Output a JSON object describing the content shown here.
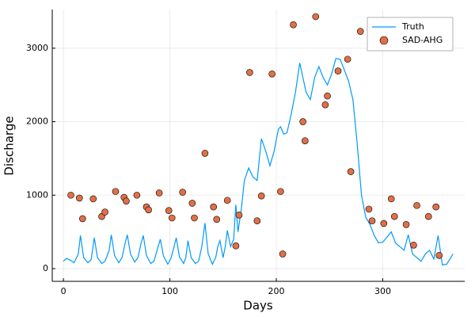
{
  "chart_data": {
    "type": "line",
    "xlabel": "Days",
    "ylabel": "Discharge",
    "xlim": [
      -10.5,
      377
    ],
    "ylim": [
      -173,
      3527
    ],
    "xticks": [
      0,
      100,
      200,
      300
    ],
    "yticks": [
      0,
      1000,
      2000,
      3000
    ],
    "grid": true,
    "legend": "top-right",
    "series": [
      {
        "name": "Truth",
        "type": "line",
        "color": "#009afa",
        "x": [
          0,
          3,
          7,
          10,
          14,
          16,
          19,
          23,
          26,
          29,
          32,
          36,
          39,
          43,
          45,
          48,
          52,
          55,
          58,
          60,
          63,
          67,
          70,
          73,
          75,
          78,
          82,
          85,
          88,
          91,
          94,
          98,
          101,
          104,
          106,
          109,
          113,
          115,
          117,
          120,
          124,
          127,
          130,
          133,
          136,
          140,
          143,
          145,
          147,
          150,
          152,
          154,
          157,
          160,
          162,
          164,
          167,
          170,
          174,
          178,
          182,
          186,
          190,
          194,
          198,
          202,
          204,
          207,
          210,
          214,
          218,
          222,
          225,
          228,
          232,
          236,
          240,
          244,
          248,
          252,
          256,
          260,
          264,
          268,
          272,
          276,
          280,
          284,
          288,
          292,
          296,
          300,
          304,
          308,
          312,
          316,
          320,
          324,
          328,
          332,
          336,
          340,
          344,
          348,
          352,
          356,
          360,
          364,
          366
        ],
        "values": [
          100,
          140,
          110,
          80,
          200,
          450,
          150,
          80,
          120,
          420,
          150,
          70,
          100,
          250,
          460,
          180,
          80,
          150,
          350,
          460,
          200,
          90,
          150,
          350,
          450,
          180,
          70,
          100,
          250,
          400,
          170,
          60,
          140,
          300,
          420,
          160,
          70,
          150,
          380,
          150,
          70,
          100,
          300,
          620,
          200,
          60,
          150,
          300,
          380,
          150,
          300,
          520,
          300,
          400,
          870,
          500,
          800,
          1200,
          1370,
          1250,
          1200,
          1770,
          1600,
          1400,
          1600,
          1900,
          1930,
          1830,
          1850,
          2100,
          2400,
          2800,
          2600,
          2400,
          2300,
          2600,
          2750,
          2600,
          2500,
          2650,
          2860,
          2850,
          2700,
          2550,
          2300,
          1700,
          1000,
          700,
          600,
          450,
          350,
          360,
          430,
          500,
          350,
          300,
          250,
          460,
          200,
          150,
          100,
          200,
          250,
          130,
          450,
          50,
          60,
          150,
          200
        ]
      },
      {
        "name": "SAD-AHG",
        "type": "scatter",
        "color": "#e26f46",
        "x": [
          7,
          15,
          18,
          28,
          36,
          39,
          49,
          57,
          59,
          69,
          78,
          80,
          90,
          99,
          102,
          112,
          121,
          123,
          133,
          141,
          144,
          154,
          162,
          165,
          175,
          182,
          186,
          196,
          204,
          206,
          216,
          225,
          227,
          237,
          246,
          248,
          258,
          267,
          270,
          279,
          287,
          290,
          301,
          308,
          311,
          322,
          329,
          332,
          343,
          350,
          353
        ],
        "values": [
          1000,
          960,
          680,
          950,
          710,
          770,
          1050,
          970,
          920,
          1000,
          840,
          800,
          1030,
          790,
          690,
          1040,
          890,
          690,
          1570,
          840,
          670,
          930,
          310,
          730,
          2670,
          650,
          990,
          2650,
          1050,
          200,
          3320,
          2000,
          1740,
          3430,
          2230,
          2350,
          2690,
          2850,
          1320,
          3230,
          810,
          650,
          615,
          950,
          710,
          600,
          320,
          860,
          710,
          840,
          180
        ]
      }
    ]
  }
}
